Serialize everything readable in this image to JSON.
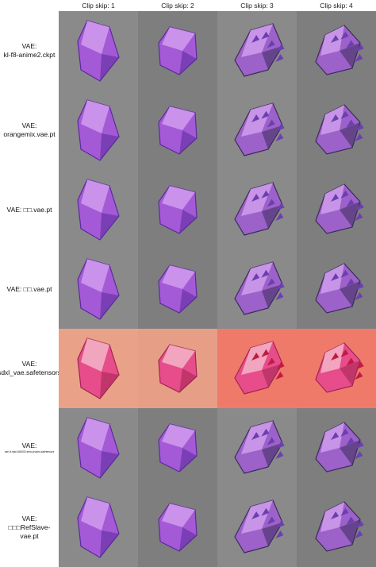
{
  "columns": [
    "Clip skip: 1",
    "Clip skip: 2",
    "Clip skip: 3",
    "Clip skip: 4"
  ],
  "rows": [
    {
      "line1": "VAE:",
      "line2": "kl-f8-anime2.ckpt",
      "tiny": false
    },
    {
      "line1": "VAE:",
      "line2": "orangemix.vae.pt",
      "tiny": false
    },
    {
      "line1": "VAE: □□.vae.pt",
      "line2": "",
      "tiny": false
    },
    {
      "line1": "VAE: □□.vae.pt",
      "line2": "",
      "tiny": false
    },
    {
      "line1": "VAE:",
      "line2": "sdxl_vae.safetensors",
      "tiny": false
    },
    {
      "line1": "VAE:",
      "line2": "vae-ft-mse-840000-ema-pruned.safetensors",
      "tiny": true
    },
    {
      "line1": "VAE:",
      "line2": "□□□RefSlave-vae.pt",
      "tiny": false
    }
  ]
}
